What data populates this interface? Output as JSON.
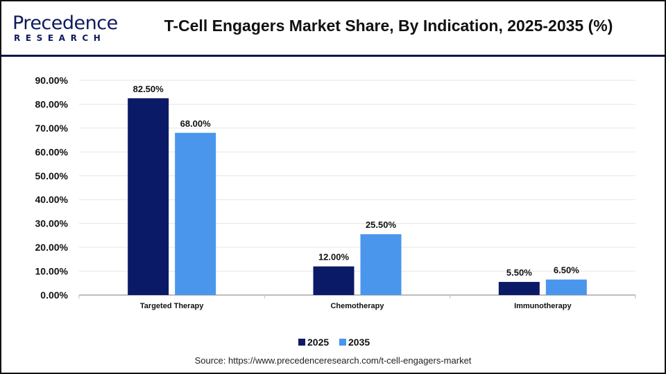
{
  "header": {
    "logo_text": "Precedence",
    "logo_subtext": "RESEARCH",
    "title": "T-Cell Engagers Market Share, By Indication, 2025-2035 (%)"
  },
  "source": "Source: https://www.precedenceresearch.com/t-cell-engagers-market",
  "colors": {
    "2025": "#0b1a66",
    "2035": "#4a96ec",
    "header_rule": "#0d1547"
  },
  "chart_data": {
    "type": "bar",
    "title": "T-Cell Engagers Market Share, By Indication, 2025-2035 (%)",
    "categories": [
      "Targeted Therapy",
      "Chemotherapy",
      "Immunotherapy"
    ],
    "series": [
      {
        "name": "2025",
        "values": [
          82.5,
          12.0,
          5.5
        ],
        "labels": [
          "82.50%",
          "12.00%",
          "5.50%"
        ],
        "color": "#0b1a66"
      },
      {
        "name": "2035",
        "values": [
          68.0,
          25.5,
          6.5
        ],
        "labels": [
          "68.00%",
          "25.50%",
          "6.50%"
        ],
        "color": "#4a96ec"
      }
    ],
    "yticks": [
      "0.00%",
      "10.00%",
      "20.00%",
      "30.00%",
      "40.00%",
      "50.00%",
      "60.00%",
      "70.00%",
      "80.00%",
      "90.00%"
    ],
    "ylim": [
      0,
      90
    ],
    "grid": true,
    "legend": "bottom-center"
  }
}
